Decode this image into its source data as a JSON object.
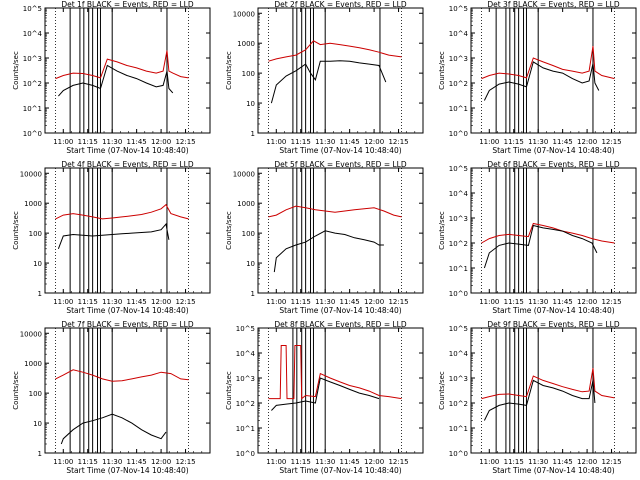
{
  "figure": {
    "layout": "3x3 grid of detector rate plots",
    "colors": {
      "events": "#000000",
      "lld": "#cc0000",
      "axes": "#000000"
    },
    "x_tick_labels": [
      "11:00",
      "11:15",
      "11:30",
      "11:45",
      "12:00",
      "12:15"
    ],
    "x_tick_hours": [
      11.0,
      11.25,
      11.5,
      11.75,
      12.0,
      12.25
    ],
    "xlim_hours": [
      10.813,
      12.5
    ]
  },
  "chart_data": [
    {
      "type": "line",
      "title": "Det 1f BLACK = Events, RED = LLD",
      "xlabel": "Start Time (07-Nov-14 10:48:40)",
      "ylabel": "Counts/sec",
      "yscale": "log",
      "ylim": [
        1,
        100000
      ],
      "ytick_labels": [
        "10^0",
        "10^1",
        "10^2",
        "10^3",
        "10^4",
        "10^5"
      ],
      "ytick_values": [
        1,
        10,
        100,
        1000,
        10000,
        100000
      ],
      "x_range_hours": [
        10.92,
        12.28
      ],
      "vlines_hours": [
        11.07,
        11.17,
        11.21,
        11.26,
        11.3,
        11.35,
        11.38,
        11.5,
        12.06
      ],
      "series": [
        {
          "name": "LLD",
          "color": "red",
          "x": [
            10.92,
            11.0,
            11.1,
            11.2,
            11.3,
            11.38,
            11.45,
            11.55,
            11.65,
            11.75,
            11.85,
            11.95,
            12.02,
            12.06,
            12.08,
            12.12,
            12.2,
            12.28
          ],
          "y": [
            150,
            200,
            250,
            240,
            200,
            160,
            900,
            700,
            500,
            400,
            300,
            250,
            300,
            2000,
            300,
            250,
            180,
            160
          ]
        },
        {
          "name": "Events",
          "color": "black",
          "x": [
            10.95,
            11.0,
            11.1,
            11.2,
            11.3,
            11.38,
            11.45,
            11.55,
            11.65,
            11.75,
            11.85,
            11.95,
            12.02,
            12.06,
            12.08,
            12.12
          ],
          "y": [
            30,
            50,
            80,
            100,
            80,
            60,
            500,
            300,
            200,
            150,
            100,
            70,
            80,
            300,
            60,
            40
          ]
        }
      ]
    },
    {
      "type": "line",
      "title": "Det 2f BLACK = Events, RED = LLD",
      "xlabel": "Start Time (07-Nov-14 10:48:40)",
      "ylabel": "Counts/sec",
      "yscale": "log",
      "ylim": [
        1,
        15000
      ],
      "ytick_labels": [
        "1",
        "10",
        "100",
        "1000",
        "10000"
      ],
      "ytick_values": [
        1,
        10,
        100,
        1000,
        10000
      ],
      "x_range_hours": [
        10.92,
        12.28
      ],
      "vlines_hours": [
        11.17,
        11.21,
        11.26,
        11.3,
        11.35,
        11.38,
        11.5,
        12.06
      ],
      "series": [
        {
          "name": "LLD",
          "color": "red",
          "x": [
            10.92,
            11.0,
            11.1,
            11.2,
            11.3,
            11.38,
            11.45,
            11.55,
            11.65,
            11.75,
            11.85,
            11.95,
            12.05,
            12.15,
            12.28
          ],
          "y": [
            250,
            300,
            350,
            400,
            600,
            1200,
            900,
            1000,
            900,
            800,
            700,
            600,
            500,
            400,
            350
          ]
        },
        {
          "name": "Events",
          "color": "black",
          "x": [
            10.95,
            11.0,
            11.1,
            11.2,
            11.3,
            11.35,
            11.4,
            11.45,
            11.55,
            11.65,
            11.75,
            11.85,
            11.95,
            12.05,
            12.12
          ],
          "y": [
            10,
            40,
            80,
            120,
            200,
            100,
            60,
            250,
            250,
            260,
            250,
            220,
            200,
            180,
            50
          ]
        }
      ]
    },
    {
      "type": "line",
      "title": "Det 3f BLACK = Events, RED = LLD",
      "xlabel": "Start Time (07-Nov-14 10:48:40)",
      "ylabel": "Counts/sec",
      "yscale": "log",
      "ylim": [
        1,
        100000
      ],
      "ytick_labels": [
        "10^0",
        "10^1",
        "10^2",
        "10^3",
        "10^4",
        "10^5"
      ],
      "ytick_values": [
        1,
        10,
        100,
        1000,
        10000,
        100000
      ],
      "x_range_hours": [
        10.92,
        12.28
      ],
      "vlines_hours": [
        11.07,
        11.17,
        11.21,
        11.26,
        11.3,
        11.35,
        11.38,
        11.5,
        12.06
      ],
      "series": [
        {
          "name": "LLD",
          "color": "red",
          "x": [
            10.92,
            11.0,
            11.1,
            11.2,
            11.3,
            11.38,
            11.45,
            11.55,
            11.65,
            11.75,
            11.85,
            11.95,
            12.02,
            12.06,
            12.08,
            12.15,
            12.28
          ],
          "y": [
            150,
            200,
            250,
            230,
            200,
            160,
            1000,
            700,
            500,
            350,
            300,
            250,
            300,
            3000,
            300,
            200,
            150
          ]
        },
        {
          "name": "Events",
          "color": "black",
          "x": [
            10.95,
            11.0,
            11.1,
            11.2,
            11.3,
            11.38,
            11.45,
            11.55,
            11.65,
            11.75,
            11.85,
            11.95,
            12.02,
            12.06,
            12.08,
            12.12
          ],
          "y": [
            20,
            50,
            90,
            110,
            90,
            70,
            700,
            400,
            300,
            250,
            150,
            100,
            120,
            600,
            100,
            50
          ]
        }
      ]
    },
    {
      "type": "line",
      "title": "Det 4f BLACK = Events, RED = LLD",
      "xlabel": "Start Time (07-Nov-14 10:48:40)",
      "ylabel": "Counts/sec",
      "yscale": "log",
      "ylim": [
        1,
        15000
      ],
      "ytick_labels": [
        "1",
        "10",
        "100",
        "1000",
        "10000"
      ],
      "ytick_values": [
        1,
        10,
        100,
        1000,
        10000
      ],
      "x_range_hours": [
        10.92,
        12.28
      ],
      "vlines_hours": [
        11.07,
        11.17,
        11.21,
        11.26,
        11.3,
        11.35,
        11.38,
        11.5,
        12.06
      ],
      "series": [
        {
          "name": "LLD",
          "color": "red",
          "x": [
            10.92,
            11.0,
            11.1,
            11.2,
            11.3,
            11.4,
            11.5,
            11.6,
            11.7,
            11.8,
            11.9,
            12.0,
            12.05,
            12.1,
            12.2,
            12.28
          ],
          "y": [
            300,
            400,
            450,
            400,
            350,
            300,
            320,
            350,
            380,
            420,
            500,
            650,
            900,
            450,
            350,
            300
          ]
        },
        {
          "name": "Events",
          "color": "black",
          "x": [
            10.95,
            11.0,
            11.1,
            11.2,
            11.3,
            11.4,
            11.5,
            11.6,
            11.7,
            11.8,
            11.9,
            12.0,
            12.05,
            12.08
          ],
          "y": [
            30,
            80,
            90,
            85,
            80,
            85,
            90,
            95,
            100,
            105,
            110,
            130,
            200,
            60
          ]
        }
      ]
    },
    {
      "type": "line",
      "title": "Det 5f BLACK = Events, RED = LLD",
      "xlabel": "Start Time (07-Nov-14 10:48:40)",
      "ylabel": "Counts/sec",
      "yscale": "log",
      "ylim": [
        1,
        15000
      ],
      "ytick_labels": [
        "1",
        "10",
        "100",
        "1000",
        "10000"
      ],
      "ytick_values": [
        1,
        10,
        100,
        1000,
        10000
      ],
      "x_range_hours": [
        10.92,
        12.28
      ],
      "vlines_hours": [
        11.17,
        11.21,
        11.26,
        11.3,
        11.35,
        11.38,
        11.5,
        12.06
      ],
      "series": [
        {
          "name": "LLD",
          "color": "red",
          "x": [
            10.92,
            11.0,
            11.1,
            11.2,
            11.3,
            11.4,
            11.5,
            11.6,
            11.7,
            11.8,
            11.9,
            12.0,
            12.1,
            12.2,
            12.28
          ],
          "y": [
            350,
            400,
            600,
            800,
            700,
            600,
            550,
            500,
            550,
            600,
            650,
            700,
            550,
            400,
            350
          ]
        },
        {
          "name": "Events",
          "color": "black",
          "x": [
            10.98,
            11.0,
            11.1,
            11.2,
            11.3,
            11.4,
            11.5,
            11.6,
            11.7,
            11.8,
            11.9,
            12.0,
            12.05,
            12.1
          ],
          "y": [
            5,
            15,
            30,
            40,
            50,
            80,
            120,
            100,
            90,
            70,
            60,
            50,
            40,
            40
          ]
        }
      ]
    },
    {
      "type": "line",
      "title": "Det 6f BLACK = Events, RED = LLD",
      "xlabel": "Start Time (07-Nov-14 10:48:40)",
      "ylabel": "Counts/sec",
      "yscale": "log",
      "ylim": [
        1,
        100000
      ],
      "ytick_labels": [
        "10^0",
        "10^1",
        "10^2",
        "10^3",
        "10^4",
        "10^5"
      ],
      "ytick_values": [
        1,
        10,
        100,
        1000,
        10000,
        100000
      ],
      "x_range_hours": [
        10.92,
        12.28
      ],
      "vlines_hours": [
        11.07,
        11.17,
        11.21,
        11.26,
        11.3,
        11.35,
        11.38,
        11.5,
        12.06
      ],
      "series": [
        {
          "name": "LLD",
          "color": "red",
          "x": [
            10.92,
            11.0,
            11.1,
            11.2,
            11.3,
            11.4,
            11.45,
            11.55,
            11.65,
            11.75,
            11.85,
            11.95,
            12.05,
            12.15,
            12.28
          ],
          "y": [
            100,
            150,
            200,
            220,
            200,
            180,
            600,
            500,
            400,
            300,
            250,
            200,
            150,
            120,
            100
          ]
        },
        {
          "name": "Events",
          "color": "black",
          "x": [
            10.95,
            11.0,
            11.1,
            11.2,
            11.3,
            11.4,
            11.45,
            11.55,
            11.65,
            11.75,
            11.85,
            11.95,
            12.05,
            12.1
          ],
          "y": [
            10,
            40,
            80,
            100,
            90,
            80,
            500,
            400,
            350,
            300,
            200,
            150,
            100,
            40
          ]
        }
      ]
    },
    {
      "type": "line",
      "title": "Det 7f BLACK = Events, RED = LLD",
      "xlabel": "Start Time (07-Nov-14 10:48:40)",
      "ylabel": "Counts/sec",
      "yscale": "log",
      "ylim": [
        1,
        15000
      ],
      "ytick_labels": [
        "1",
        "10",
        "100",
        "1000",
        "10000"
      ],
      "ytick_values": [
        1,
        10,
        100,
        1000,
        10000
      ],
      "x_range_hours": [
        10.92,
        12.28
      ],
      "vlines_hours": [
        11.07,
        11.17,
        11.21,
        11.26,
        11.3,
        11.35,
        11.38,
        11.5,
        12.06
      ],
      "series": [
        {
          "name": "LLD",
          "color": "red",
          "x": [
            10.92,
            11.0,
            11.1,
            11.2,
            11.3,
            11.4,
            11.5,
            11.6,
            11.7,
            11.8,
            11.9,
            12.0,
            12.1,
            12.2,
            12.28
          ],
          "y": [
            300,
            400,
            600,
            500,
            400,
            300,
            250,
            260,
            300,
            350,
            400,
            500,
            450,
            300,
            280
          ]
        },
        {
          "name": "Events",
          "color": "black",
          "x": [
            10.98,
            11.0,
            11.1,
            11.2,
            11.3,
            11.4,
            11.5,
            11.6,
            11.7,
            11.8,
            11.9,
            12.0,
            12.05
          ],
          "y": [
            2,
            3,
            6,
            10,
            12,
            15,
            20,
            15,
            10,
            6,
            4,
            3,
            5
          ]
        }
      ]
    },
    {
      "type": "line",
      "title": "Det 8f BLACK = Events, RED = LLD",
      "xlabel": "Start Time (07-Nov-14 10:48:40)",
      "ylabel": "Counts/sec",
      "yscale": "log",
      "ylim": [
        1,
        100000
      ],
      "ytick_labels": [
        "10^0",
        "10^1",
        "10^2",
        "10^3",
        "10^4",
        "10^5"
      ],
      "ytick_values": [
        1,
        10,
        100,
        1000,
        10000,
        100000
      ],
      "x_range_hours": [
        10.92,
        12.28
      ],
      "vlines_hours": [
        11.17,
        11.21,
        11.26,
        11.3,
        11.35,
        11.38,
        11.5,
        12.06
      ],
      "series": [
        {
          "name": "LLD",
          "color": "red",
          "x": [
            10.92,
            11.0,
            11.04,
            11.05,
            11.1,
            11.11,
            11.15,
            11.18,
            11.19,
            11.25,
            11.26,
            11.3,
            11.4,
            11.45,
            11.55,
            11.65,
            11.75,
            11.85,
            11.95,
            12.05,
            12.15,
            12.28
          ],
          "y": [
            150,
            150,
            150,
            20000,
            20000,
            150,
            150,
            150,
            20000,
            20000,
            150,
            200,
            180,
            1500,
            1000,
            700,
            500,
            400,
            300,
            200,
            180,
            150
          ]
        },
        {
          "name": "Events",
          "color": "black",
          "x": [
            10.95,
            11.0,
            11.1,
            11.2,
            11.3,
            11.4,
            11.45,
            11.55,
            11.65,
            11.75,
            11.85,
            11.95,
            12.05
          ],
          "y": [
            50,
            80,
            90,
            100,
            120,
            100,
            1000,
            700,
            500,
            350,
            250,
            200,
            150
          ]
        }
      ]
    },
    {
      "type": "line",
      "title": "Det 9f BLACK = Events, RED = LLD",
      "xlabel": "Start Time (07-Nov-14 10:48:40)",
      "ylabel": "Counts/sec",
      "yscale": "log",
      "ylim": [
        1,
        100000
      ],
      "ytick_labels": [
        "10^0",
        "10^1",
        "10^2",
        "10^3",
        "10^4",
        "10^5"
      ],
      "ytick_values": [
        1,
        10,
        100,
        1000,
        10000,
        100000
      ],
      "x_range_hours": [
        10.92,
        12.28
      ],
      "vlines_hours": [
        11.07,
        11.17,
        11.21,
        11.26,
        11.3,
        11.35,
        11.38,
        11.5,
        12.06
      ],
      "series": [
        {
          "name": "LLD",
          "color": "red",
          "x": [
            10.92,
            11.0,
            11.1,
            11.2,
            11.3,
            11.38,
            11.45,
            11.55,
            11.65,
            11.75,
            11.85,
            11.95,
            12.02,
            12.06,
            12.08,
            12.15,
            12.28
          ],
          "y": [
            150,
            180,
            220,
            230,
            200,
            180,
            1200,
            800,
            600,
            450,
            350,
            280,
            300,
            2500,
            300,
            200,
            160
          ]
        },
        {
          "name": "Events",
          "color": "black",
          "x": [
            10.95,
            11.0,
            11.1,
            11.2,
            11.3,
            11.38,
            11.45,
            11.55,
            11.65,
            11.75,
            11.85,
            11.95,
            12.02,
            12.06,
            12.08
          ],
          "y": [
            20,
            50,
            80,
            100,
            90,
            80,
            800,
            500,
            400,
            300,
            200,
            150,
            150,
            800,
            100
          ]
        }
      ]
    }
  ]
}
